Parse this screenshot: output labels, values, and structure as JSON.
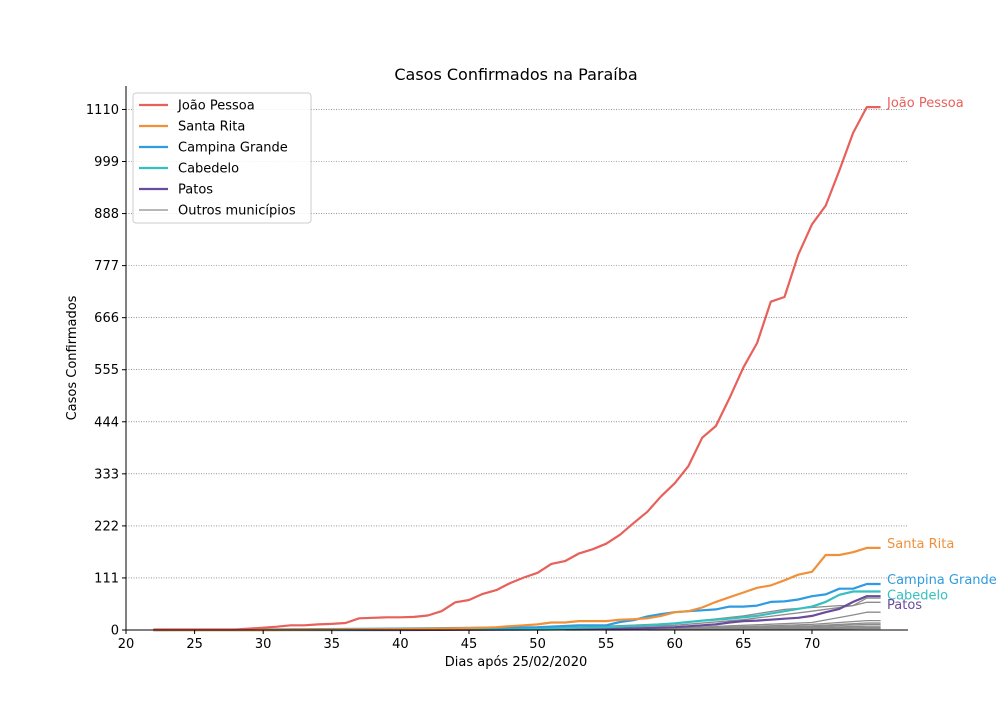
{
  "chart_data": {
    "type": "line",
    "title": "Casos Confirmados na Paraíba",
    "xlabel": "Dias após 25/02/2020",
    "ylabel": "Casos Confirmados",
    "xlim": [
      20,
      77
    ],
    "ylim": [
      0,
      1160
    ],
    "xticks": [
      20,
      25,
      30,
      35,
      40,
      45,
      50,
      55,
      60,
      65,
      70
    ],
    "yticks": [
      0,
      111,
      222,
      333,
      444,
      555,
      666,
      777,
      888,
      999,
      1110
    ],
    "grid": "horizontal-dotted",
    "legend_position": "top-left",
    "series": [
      {
        "name": "João Pessoa",
        "color": "#e8605a",
        "end_label": "João Pessoa",
        "x": [
          22,
          23,
          24,
          25,
          26,
          27,
          28,
          29,
          30,
          31,
          32,
          33,
          34,
          35,
          36,
          37,
          38,
          39,
          40,
          41,
          42,
          43,
          44,
          45,
          46,
          47,
          48,
          49,
          50,
          51,
          52,
          53,
          54,
          55,
          56,
          57,
          58,
          59,
          60,
          61,
          62,
          63,
          64,
          65,
          66,
          67,
          68,
          69,
          70,
          71,
          72,
          73,
          74,
          75
        ],
        "values": [
          1,
          1,
          1,
          1,
          1,
          1,
          1,
          3,
          5,
          7,
          10,
          10,
          12,
          13,
          15,
          25,
          26,
          27,
          27,
          28,
          31,
          40,
          59,
          64,
          77,
          85,
          100,
          112,
          122,
          141,
          147,
          163,
          172,
          184,
          203,
          228,
          252,
          285,
          313,
          350,
          410,
          435,
          495,
          560,
          612,
          700,
          710,
          800,
          865,
          905,
          980,
          1060,
          1115,
          1115
        ]
      },
      {
        "name": "Santa Rita",
        "color": "#f0913a",
        "end_label": "Santa Rita",
        "x": [
          22,
          25,
          30,
          35,
          40,
          45,
          46,
          47,
          48,
          49,
          50,
          51,
          52,
          53,
          54,
          55,
          56,
          57,
          58,
          59,
          60,
          61,
          62,
          63,
          64,
          65,
          66,
          67,
          68,
          69,
          70,
          71,
          72,
          73,
          74,
          75
        ],
        "values": [
          0,
          0,
          0,
          1,
          2,
          4,
          5,
          6,
          8,
          10,
          12,
          16,
          16,
          19,
          19,
          19,
          22,
          23,
          25,
          30,
          38,
          40,
          48,
          60,
          70,
          80,
          90,
          95,
          106,
          118,
          124,
          160,
          160,
          166,
          175,
          175
        ]
      },
      {
        "name": "Campina Grande",
        "color": "#2f9be0",
        "end_label": "Campina Grande",
        "x": [
          22,
          30,
          40,
          50,
          53,
          54,
          55,
          56,
          57,
          58,
          59,
          60,
          61,
          62,
          63,
          64,
          65,
          66,
          67,
          68,
          69,
          70,
          71,
          72,
          73,
          74,
          75
        ],
        "values": [
          0,
          1,
          3,
          6,
          10,
          10,
          10,
          17,
          21,
          29,
          34,
          38,
          40,
          42,
          44,
          50,
          50,
          52,
          60,
          61,
          65,
          72,
          76,
          88,
          88,
          98,
          98
        ]
      },
      {
        "name": "Cabedelo",
        "color": "#35bfc0",
        "end_label": "Cabedelo",
        "x": [
          22,
          30,
          40,
          50,
          55,
          58,
          60,
          62,
          64,
          66,
          68,
          70,
          71,
          72,
          73,
          74,
          75
        ],
        "values": [
          0,
          0,
          1,
          3,
          6,
          10,
          14,
          20,
          24,
          30,
          40,
          50,
          60,
          75,
          82,
          82,
          82
        ]
      },
      {
        "name": "Patos",
        "color": "#6a4c9c",
        "end_label": "Patos",
        "x": [
          22,
          40,
          50,
          55,
          58,
          60,
          62,
          63,
          64,
          65,
          66,
          67,
          68,
          69,
          70,
          71,
          72,
          73,
          74,
          75
        ],
        "values": [
          0,
          0,
          1,
          2,
          4,
          6,
          10,
          12,
          16,
          19,
          20,
          22,
          24,
          26,
          30,
          38,
          45,
          60,
          72,
          72
        ]
      }
    ],
    "others": {
      "name": "Outros municípios",
      "color": "#8c8c8c",
      "lines": [
        {
          "x": [
            40,
            50,
            55,
            60,
            65,
            70,
            73,
            74,
            75
          ],
          "values": [
            0,
            2,
            5,
            10,
            22,
            40,
            52,
            68,
            68
          ]
        },
        {
          "x": [
            40,
            50,
            55,
            60,
            65,
            68,
            70,
            72,
            73,
            74,
            75
          ],
          "values": [
            0,
            4,
            8,
            14,
            30,
            44,
            48,
            52,
            52,
            59,
            59
          ]
        },
        {
          "x": [
            45,
            55,
            60,
            65,
            70,
            73,
            74,
            75
          ],
          "values": [
            0,
            2,
            4,
            10,
            16,
            32,
            38,
            38
          ]
        },
        {
          "x": [
            45,
            55,
            60,
            65,
            70,
            74,
            75
          ],
          "values": [
            0,
            1,
            3,
            7,
            12,
            20,
            20
          ]
        },
        {
          "x": [
            48,
            55,
            60,
            65,
            70,
            74,
            75
          ],
          "values": [
            0,
            1,
            2,
            5,
            9,
            15,
            15
          ]
        },
        {
          "x": [
            50,
            60,
            65,
            70,
            74,
            75
          ],
          "values": [
            0,
            2,
            4,
            7,
            12,
            12
          ]
        },
        {
          "x": [
            52,
            60,
            65,
            70,
            74,
            75
          ],
          "values": [
            0,
            1,
            3,
            5,
            8,
            8
          ]
        },
        {
          "x": [
            55,
            62,
            66,
            70,
            74,
            75
          ],
          "values": [
            0,
            1,
            2,
            4,
            5,
            5
          ]
        },
        {
          "x": [
            58,
            65,
            70,
            74,
            75
          ],
          "values": [
            0,
            1,
            2,
            3,
            3
          ]
        }
      ]
    },
    "legend": [
      {
        "label": "João Pessoa",
        "color": "#e8605a"
      },
      {
        "label": "Santa Rita",
        "color": "#f0913a"
      },
      {
        "label": "Campina Grande",
        "color": "#2f9be0"
      },
      {
        "label": "Cabedelo",
        "color": "#35bfc0"
      },
      {
        "label": "Patos",
        "color": "#6a4c9c"
      },
      {
        "label": "Outros municípios",
        "color": "#8c8c8c"
      }
    ]
  }
}
